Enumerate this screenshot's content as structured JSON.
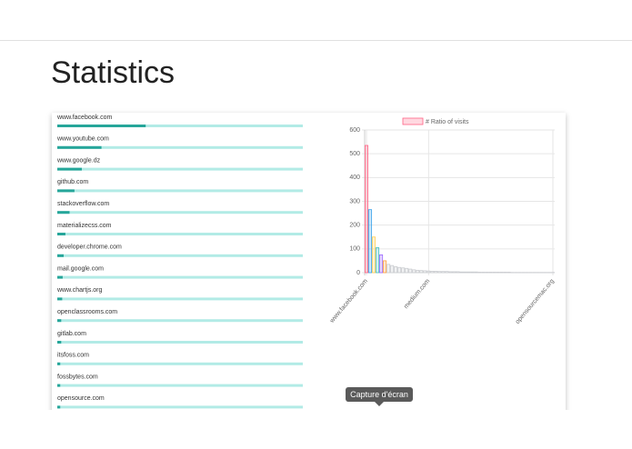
{
  "header": {
    "title": "Statistics"
  },
  "sites": [
    {
      "name": "www.facebook.com",
      "value": 36
    },
    {
      "name": "www.youtube.com",
      "value": 18
    },
    {
      "name": "www.google.dz",
      "value": 10
    },
    {
      "name": "github.com",
      "value": 7
    },
    {
      "name": "stackoverflow.com",
      "value": 5
    },
    {
      "name": "materializecss.com",
      "value": 3.3
    },
    {
      "name": "developer.chrome.com",
      "value": 2.6
    },
    {
      "name": "mail.google.com",
      "value": 2.2
    },
    {
      "name": "www.chartjs.org",
      "value": 2
    },
    {
      "name": "openclassrooms.com",
      "value": 1.6
    },
    {
      "name": "gitlab.com",
      "value": 1.6
    },
    {
      "name": "itsfoss.com",
      "value": 1.2
    },
    {
      "name": "fossbytes.com",
      "value": 1.2
    },
    {
      "name": "opensource.com",
      "value": 1.2
    }
  ],
  "chart_data": {
    "type": "bar",
    "categories": [
      "www.facebook.com",
      null,
      null,
      null,
      null,
      null,
      null,
      null,
      null,
      null,
      null,
      null,
      null,
      null,
      null,
      null,
      null,
      "medium.com",
      null,
      null,
      null,
      null,
      null,
      null,
      null,
      null,
      null,
      null,
      null,
      null,
      null,
      null,
      null,
      null,
      null,
      null,
      null,
      null,
      null,
      null,
      null,
      null,
      null,
      null,
      null,
      null,
      null,
      null,
      null,
      null,
      null,
      "opensourcemac.org"
    ],
    "series": [
      {
        "name": "# Ratio of visits",
        "values": [
          535,
          265,
          150,
          105,
          75,
          50,
          35,
          30,
          25,
          22,
          20,
          18,
          15,
          12,
          10,
          9,
          8,
          7,
          6,
          6,
          5,
          5,
          5,
          4,
          4,
          4,
          3,
          3,
          3,
          3,
          3,
          2,
          2,
          2,
          2,
          2,
          2,
          2,
          2,
          2,
          1,
          1,
          1,
          1,
          1,
          1,
          1,
          1,
          1,
          1,
          1,
          1
        ]
      }
    ],
    "colors": [
      "#ff6384",
      "#36a2eb",
      "#ffce56",
      "#4bc0c0",
      "#9966ff",
      "#ff9f40",
      "#c9cbcf"
    ],
    "ylim": [
      0,
      600
    ],
    "yticks": [
      0,
      100,
      200,
      300,
      400,
      500,
      600
    ],
    "grid": true
  },
  "tooltip": "Capture d'écran"
}
